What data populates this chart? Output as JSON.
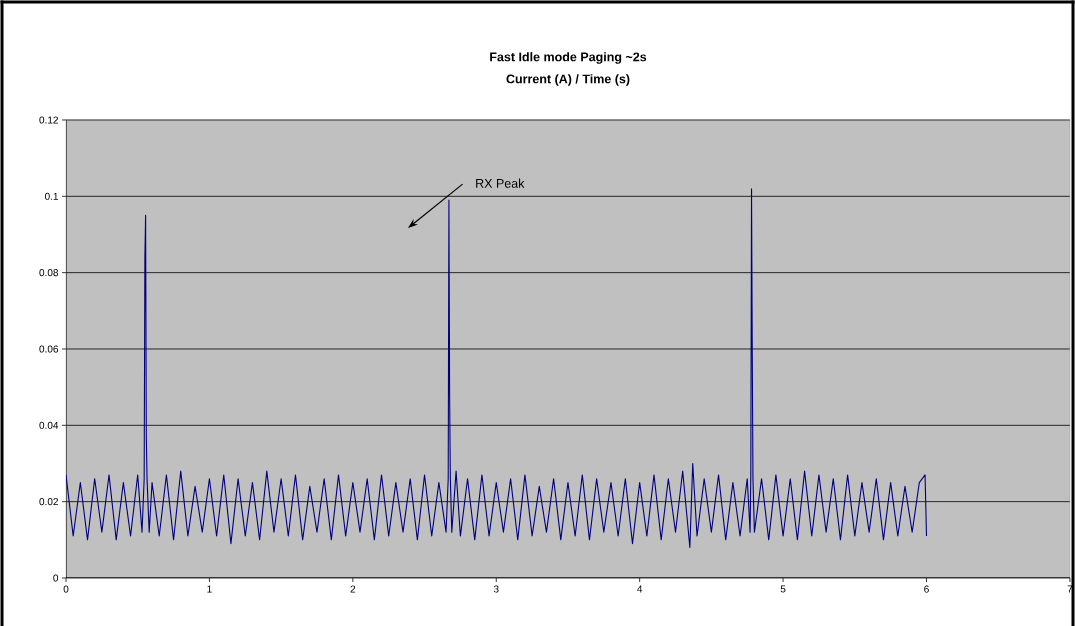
{
  "chart_data": {
    "type": "line",
    "title": "Fast Idle mode  Paging ~2s",
    "subtitle": "Current (A) / Time (s)",
    "xlim": [
      0,
      7
    ],
    "xticks": [
      0,
      1,
      2,
      3,
      4,
      5,
      6,
      7
    ],
    "ylim": [
      0,
      0.12
    ],
    "yticks": [
      0,
      0.02,
      0.04,
      0.06,
      0.08,
      0.1,
      0.12
    ],
    "grid": "y",
    "annotations": [
      "RX Peak"
    ],
    "series": [
      {
        "color": "#000080",
        "x": [
          0.0,
          0.05,
          0.1,
          0.15,
          0.2,
          0.25,
          0.3,
          0.35,
          0.4,
          0.45,
          0.5,
          0.53,
          0.545,
          0.55,
          0.555,
          0.56,
          0.565,
          0.58,
          0.6,
          0.65,
          0.7,
          0.75,
          0.8,
          0.85,
          0.9,
          0.95,
          1.0,
          1.05,
          1.1,
          1.15,
          1.2,
          1.25,
          1.3,
          1.35,
          1.4,
          1.45,
          1.5,
          1.55,
          1.6,
          1.65,
          1.7,
          1.75,
          1.8,
          1.85,
          1.9,
          1.95,
          2.0,
          2.05,
          2.1,
          2.15,
          2.2,
          2.25,
          2.3,
          2.35,
          2.4,
          2.45,
          2.5,
          2.55,
          2.6,
          2.65,
          2.665,
          2.67,
          2.675,
          2.68,
          2.69,
          2.72,
          2.75,
          2.8,
          2.85,
          2.9,
          2.95,
          3.0,
          3.05,
          3.1,
          3.15,
          3.2,
          3.25,
          3.3,
          3.35,
          3.4,
          3.45,
          3.5,
          3.55,
          3.6,
          3.65,
          3.7,
          3.75,
          3.8,
          3.85,
          3.9,
          3.95,
          4.0,
          4.05,
          4.1,
          4.15,
          4.2,
          4.25,
          4.3,
          4.35,
          4.37,
          4.4,
          4.45,
          4.5,
          4.55,
          4.6,
          4.65,
          4.7,
          4.75,
          4.77,
          4.775,
          4.78,
          4.785,
          4.79,
          4.8,
          4.85,
          4.9,
          4.95,
          5.0,
          5.05,
          5.1,
          5.15,
          5.2,
          5.25,
          5.3,
          5.35,
          5.4,
          5.45,
          5.5,
          5.55,
          5.6,
          5.65,
          5.7,
          5.75,
          5.8,
          5.85,
          5.9,
          5.95,
          5.99,
          6.0
        ],
        "values": [
          0.027,
          0.011,
          0.025,
          0.01,
          0.026,
          0.012,
          0.027,
          0.01,
          0.025,
          0.011,
          0.027,
          0.012,
          0.026,
          0.084,
          0.095,
          0.037,
          0.026,
          0.012,
          0.025,
          0.011,
          0.027,
          0.01,
          0.028,
          0.011,
          0.024,
          0.012,
          0.026,
          0.011,
          0.027,
          0.009,
          0.026,
          0.011,
          0.025,
          0.01,
          0.028,
          0.012,
          0.026,
          0.011,
          0.027,
          0.01,
          0.024,
          0.012,
          0.026,
          0.01,
          0.027,
          0.011,
          0.025,
          0.012,
          0.026,
          0.01,
          0.027,
          0.011,
          0.025,
          0.012,
          0.026,
          0.01,
          0.027,
          0.011,
          0.025,
          0.012,
          0.026,
          0.099,
          0.047,
          0.026,
          0.012,
          0.028,
          0.011,
          0.026,
          0.01,
          0.027,
          0.011,
          0.025,
          0.012,
          0.026,
          0.01,
          0.027,
          0.011,
          0.024,
          0.012,
          0.026,
          0.01,
          0.025,
          0.011,
          0.027,
          0.01,
          0.026,
          0.012,
          0.025,
          0.011,
          0.026,
          0.009,
          0.025,
          0.011,
          0.027,
          0.01,
          0.026,
          0.012,
          0.028,
          0.008,
          0.03,
          0.011,
          0.026,
          0.012,
          0.027,
          0.01,
          0.025,
          0.011,
          0.026,
          0.012,
          0.027,
          0.102,
          0.06,
          0.026,
          0.012,
          0.026,
          0.01,
          0.027,
          0.011,
          0.026,
          0.01,
          0.028,
          0.011,
          0.027,
          0.012,
          0.026,
          0.01,
          0.027,
          0.011,
          0.025,
          0.012,
          0.026,
          0.01,
          0.025,
          0.011,
          0.024,
          0.012,
          0.025,
          0.027,
          0.011
        ]
      }
    ]
  }
}
